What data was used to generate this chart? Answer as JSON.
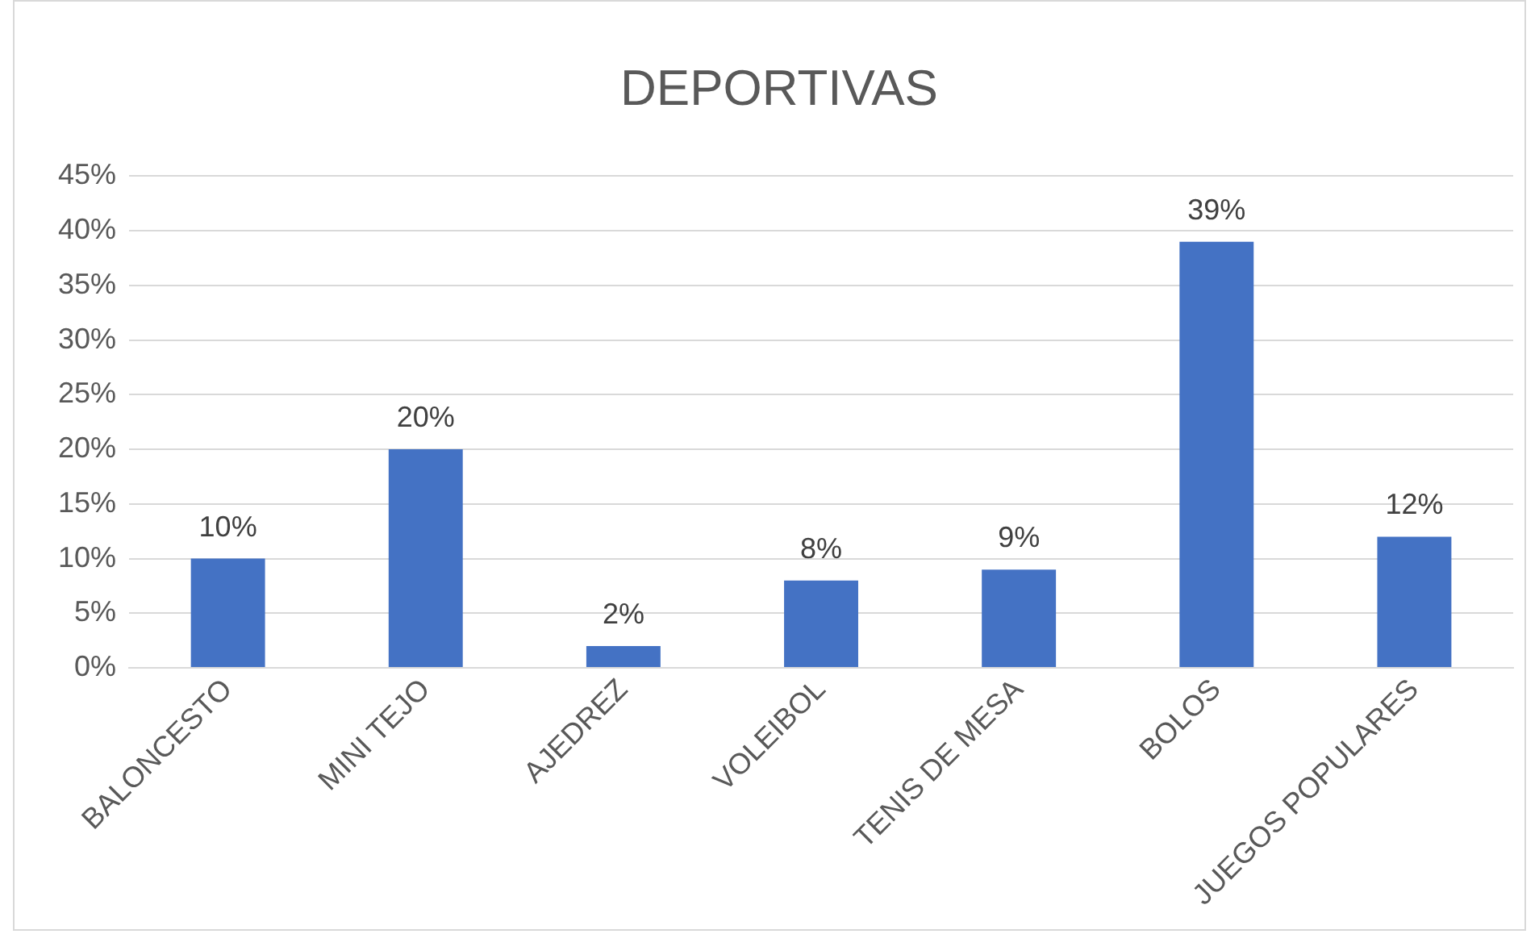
{
  "chart_data": {
    "type": "bar",
    "title": "DEPORTIVAS",
    "categories": [
      "BALONCESTO",
      "MINI TEJO",
      "AJEDREZ",
      "VOLEIBOL",
      "TENIS DE MESA",
      "BOLOS",
      "JUEGOS POPULARES"
    ],
    "values": [
      10,
      20,
      2,
      8,
      9,
      39,
      12
    ],
    "color": "#4472c4",
    "value_labels": [
      "10%",
      "20%",
      "2%",
      "8%",
      "9%",
      "39%",
      "12%"
    ],
    "ylim": [
      0,
      45
    ],
    "yticks": [
      {
        "value": 0,
        "label": "0%"
      },
      {
        "value": 5,
        "label": "5%"
      },
      {
        "value": 10,
        "label": "10%"
      },
      {
        "value": 15,
        "label": "15%"
      },
      {
        "value": 20,
        "label": "20%"
      },
      {
        "value": 25,
        "label": "25%"
      },
      {
        "value": 30,
        "label": "30%"
      },
      {
        "value": 35,
        "label": "35%"
      },
      {
        "value": 40,
        "label": "40%"
      },
      {
        "value": 45,
        "label": "45%"
      }
    ],
    "grid": "y",
    "legend": false
  }
}
